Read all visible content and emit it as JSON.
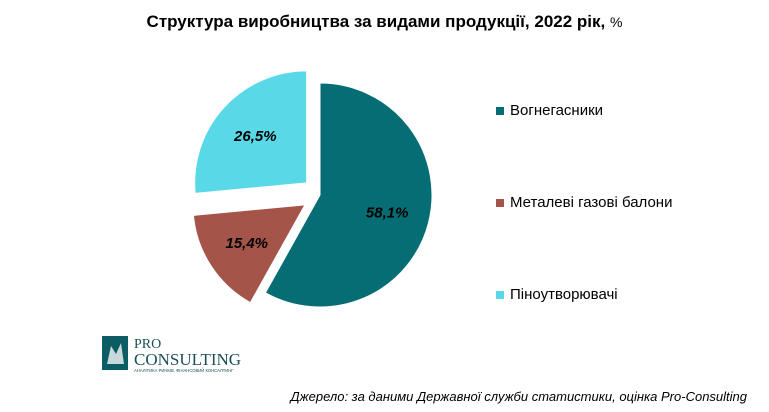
{
  "title": "Структура виробництва за видами продукції, 2022 рік",
  "title_unit": "%",
  "chart_data": {
    "type": "pie",
    "title": "Структура виробництва за видами продукції, 2022 рік, %",
    "labels": [
      "Вогнегасники",
      "Металеві газові балони",
      "Піноутворювачі"
    ],
    "values": [
      58.1,
      15.4,
      26.5
    ],
    "value_labels": [
      "58,1%",
      "15,4%",
      "26,5%"
    ],
    "colors": [
      "#066d74",
      "#a45449",
      "#59d9e8"
    ],
    "legend_position": "right"
  },
  "logo": {
    "text_line1": "PRO",
    "text_line2": "CONSULTING",
    "tagline": "АНАЛІТИКА РИНКІВ. ФІНАНСОВИЙ КОНСАЛТИНГ"
  },
  "source": "Джерело: за даними Державної служби статистики, оцінка Pro-Consulting"
}
